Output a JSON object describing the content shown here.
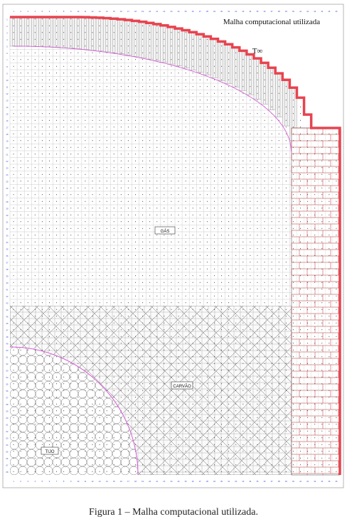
{
  "figure": {
    "title": "Malha computacional utilizada",
    "ambient_label": "T∞",
    "regions": {
      "gas": "GÁS",
      "coal": "CARVÃO",
      "brick": "TIJO"
    },
    "grid": {
      "columns": 46,
      "rows": 68
    }
  },
  "caption": "Figura 1 – Malha computacional utilizada.",
  "colors": {
    "outer_boundary": "#e8434f",
    "interface_curve": "#d65cd6",
    "grid_line": "#b8b8b8",
    "grid_text": "#2a3fd6",
    "wall": "#b03030",
    "node": "#222222",
    "frame": "#888888"
  }
}
